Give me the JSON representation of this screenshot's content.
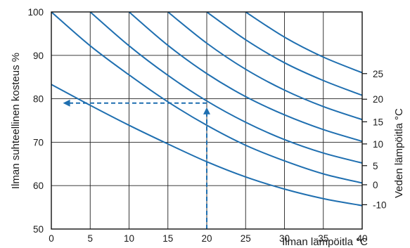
{
  "chart_data": {
    "type": "line",
    "title": "",
    "xlabel": "Ilman lämpöitla °C",
    "ylabel": "Ilman suhteellinen kosteus %",
    "y2label": "Veden lämpöitla °C",
    "xlim": [
      0,
      40
    ],
    "ylim": [
      50,
      100
    ],
    "grid": true,
    "x_ticks": [
      "0",
      "5",
      "10",
      "15",
      "20",
      "25",
      "30",
      "35",
      "40"
    ],
    "y_ticks": [
      "50",
      "60",
      "70",
      "80",
      "90",
      "100"
    ],
    "series_color": "#1f6fb0",
    "series": [
      {
        "name": "-10",
        "x": [
          0,
          5,
          10,
          15,
          20,
          25,
          30,
          35,
          40
        ],
        "y": [
          83.3,
          78.5,
          73.9,
          69.6,
          65.5,
          62.0,
          59.2,
          57.0,
          55.4
        ]
      },
      {
        "name": "0",
        "x": [
          0,
          5,
          10,
          15,
          20,
          25,
          30,
          35,
          40
        ],
        "y": [
          100,
          92.2,
          85.5,
          79.3,
          73.9,
          69.3,
          65.7,
          62.7,
          60.6
        ]
      },
      {
        "name": "5",
        "x": [
          5,
          10,
          15,
          20,
          25,
          30,
          35,
          40
        ],
        "y": [
          100,
          92.2,
          85.4,
          79.5,
          74.6,
          70.6,
          67.5,
          65.2
        ]
      },
      {
        "name": "10",
        "x": [
          10,
          15,
          20,
          25,
          30,
          35,
          40
        ],
        "y": [
          100,
          92.3,
          85.8,
          80.5,
          76.3,
          72.9,
          70.2
        ]
      },
      {
        "name": "15",
        "x": [
          15,
          20,
          25,
          30,
          35,
          40
        ],
        "y": [
          100,
          92.8,
          86.8,
          82.0,
          78.2,
          75.2
        ]
      },
      {
        "name": "20",
        "x": [
          20,
          25,
          30,
          35,
          40
        ],
        "y": [
          100,
          93.6,
          88.3,
          84.2,
          80.8
        ]
      },
      {
        "name": "25",
        "x": [
          25,
          30,
          35,
          40
        ],
        "y": [
          100,
          94.2,
          89.6,
          86.0
        ]
      }
    ],
    "right_labels": [
      {
        "label": "25",
        "y": 85.8
      },
      {
        "label": "20",
        "y": 79.9
      },
      {
        "label": "15",
        "y": 74.7
      },
      {
        "label": "10",
        "y": 69.6
      },
      {
        "label": "5",
        "y": 64.6
      },
      {
        "label": "0",
        "y": 60.2
      },
      {
        "label": "-10",
        "y": 55.6
      }
    ],
    "annotation": {
      "x": 20,
      "y": 79,
      "arrow_up_to": [
        20,
        79
      ],
      "arrow_left_to": [
        1.5,
        79
      ],
      "style": "dashed"
    }
  }
}
